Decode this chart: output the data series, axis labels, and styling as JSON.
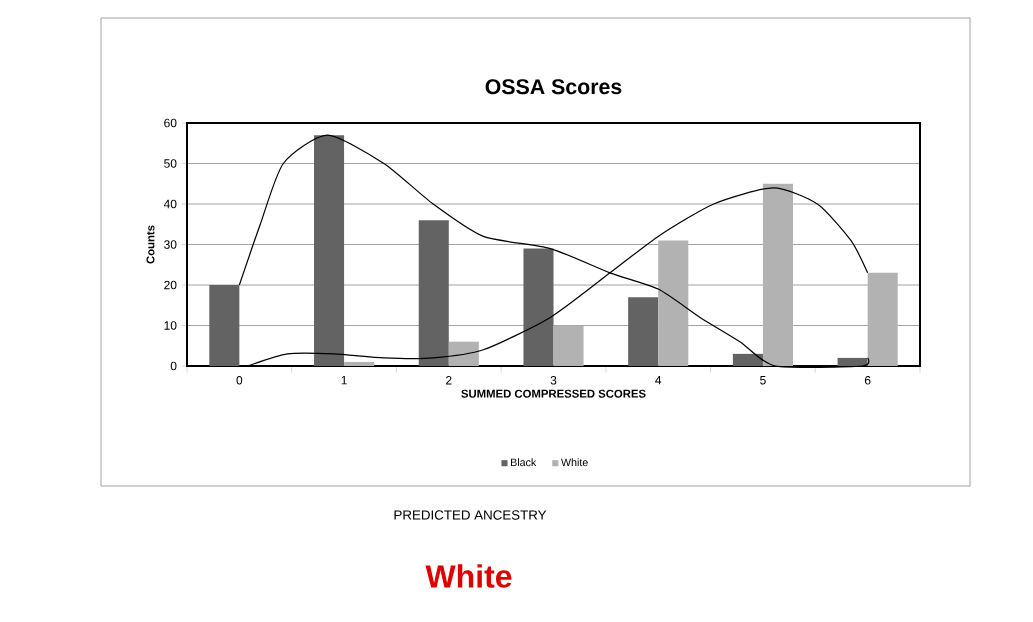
{
  "chart_data": {
    "type": "bar",
    "title": "OSSA Scores",
    "xlabel": "SUMMED COMPRESSED SCORES",
    "ylabel": "Counts",
    "x": [
      0,
      1,
      2,
      3,
      4,
      5,
      6
    ],
    "series": [
      {
        "name": "Black",
        "color": "#636363",
        "values": [
          20,
          57,
          36,
          29,
          17,
          3,
          2
        ]
      },
      {
        "name": "White",
        "color": "#b2b2b2",
        "values": [
          0,
          1,
          6,
          10,
          31,
          45,
          23
        ]
      },
      {
        "type": "line",
        "color": "#000000",
        "x": [
          0.0,
          0.2,
          0.42,
          0.84,
          1.38,
          1.85,
          2.33,
          2.97,
          3.54,
          4.0,
          4.4,
          4.78,
          5.12,
          5.95,
          6.0
        ],
        "values": [
          20,
          35,
          50,
          57,
          50,
          40,
          32,
          29,
          23,
          19,
          12,
          6,
          0,
          0,
          2
        ]
      },
      {
        "type": "line",
        "color": "#000000",
        "x": [
          0.08,
          0.46,
          0.9,
          1.38,
          1.85,
          2.33,
          2.97,
          3.54,
          4.0,
          4.53,
          5.1,
          5.52,
          5.84,
          6.0
        ],
        "values": [
          0,
          3,
          3,
          2,
          2,
          4,
          12,
          23,
          32,
          40,
          44,
          40,
          31,
          23
        ]
      }
    ],
    "xlim": [
      -0.5,
      6.5
    ],
    "xticks": [
      {
        "value": -0.5,
        "label": null
      },
      0,
      {
        "value": 0.5,
        "label": null
      },
      1,
      {
        "value": 1.5,
        "label": null
      },
      2,
      {
        "value": 2.5,
        "label": null
      },
      3,
      {
        "value": 3.5,
        "label": null
      },
      4,
      {
        "value": 4.5,
        "label": null
      },
      5,
      {
        "value": 5.5,
        "label": null
      },
      6,
      {
        "value": 6.5,
        "label": null
      }
    ],
    "ylim": [
      0,
      60
    ],
    "yticks": [
      0,
      10,
      20,
      30,
      40,
      50,
      60
    ],
    "grid": "y",
    "legend": "bottom",
    "annotations": [
      "PREDICTED ANCESTRY",
      "White"
    ]
  }
}
